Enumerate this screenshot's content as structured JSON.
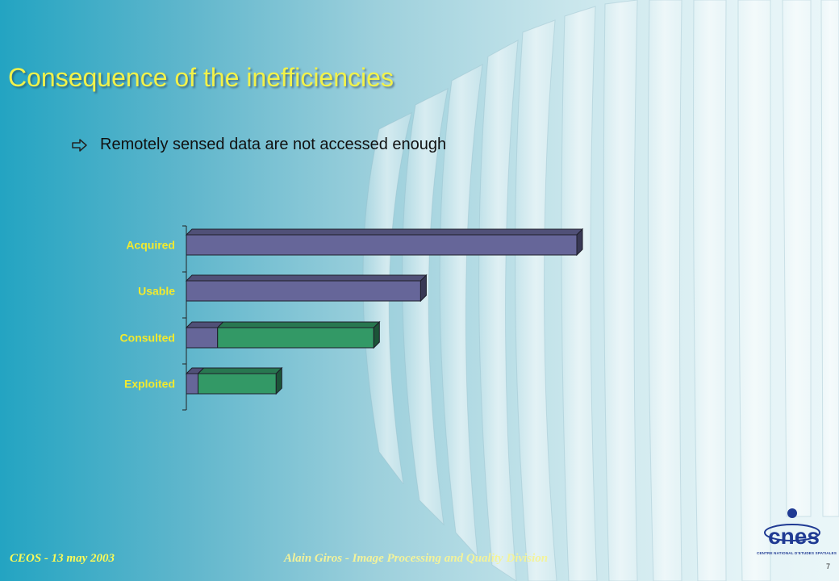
{
  "slide": {
    "title": "Consequence of the inefficiencies",
    "bullet": "Remotely sensed data are not accessed enough",
    "footer_left": "CEOS - 13 may 2003",
    "footer_center": "Alain Giros - Image Processing and Quality Division",
    "page_number": "7",
    "logo_text": "cnes",
    "logo_caption": "CENTRE NATIONAL D'ETUDES SPATIALES"
  },
  "colors": {
    "title": "#f2f24a",
    "category_label": "#f2ea2e",
    "series_blue": "#666699",
    "series_green": "#339966",
    "logo": "#1f3a93"
  },
  "icons": {
    "bullet": "right-arrow-outline-icon"
  },
  "chart_data": {
    "type": "bar",
    "orientation": "horizontal",
    "stacked": true,
    "three_d": true,
    "categories": [
      "Acquired",
      "Usable",
      "Consulted",
      "Exploited"
    ],
    "series": [
      {
        "values": [
          100,
          60,
          8,
          3
        ],
        "color": "#666699"
      },
      {
        "values": [
          0,
          0,
          40,
          20
        ],
        "color": "#339966"
      }
    ],
    "xlim": [
      0,
      100
    ],
    "grid": false,
    "legend": "none"
  }
}
